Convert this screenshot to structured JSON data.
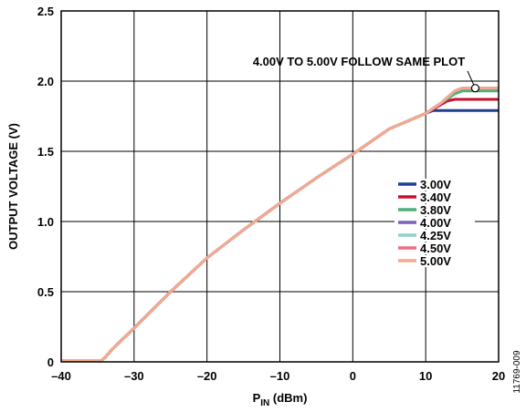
{
  "chart_data": {
    "type": "line",
    "title": "",
    "xlabel": "P",
    "xlabel_sub": "IN",
    "xlabel_unit": " (dBm)",
    "ylabel": "OUTPUT VOLTAGE (V)",
    "xlim": [
      -40,
      20
    ],
    "ylim": [
      0,
      2.5
    ],
    "x_ticks": [
      -40,
      -30,
      -20,
      -10,
      0,
      10,
      20
    ],
    "x_tick_labels": [
      "–40",
      "–30",
      "–20",
      "–10",
      "0",
      "10",
      "20"
    ],
    "y_ticks": [
      0,
      0.5,
      1.0,
      1.5,
      2.0,
      2.5
    ],
    "y_tick_labels": [
      "0",
      "0.5",
      "1.0",
      "1.5",
      "2.0",
      "2.5"
    ],
    "grid": true,
    "legend_position": "right",
    "annotation": "4.00V TO 5.00V FOLLOW SAME PLOT",
    "figure_id": "11769-009",
    "series": [
      {
        "name": "3.00V",
        "color": "#1f3f8f",
        "x": [
          -40,
          -34.5,
          -34,
          -33,
          -30,
          -25,
          -20,
          -15,
          -10,
          -5,
          0,
          5,
          10,
          11,
          12,
          15,
          20
        ],
        "y": [
          0.01,
          0.01,
          0.03,
          0.09,
          0.24,
          0.5,
          0.74,
          0.94,
          1.13,
          1.31,
          1.48,
          1.66,
          1.77,
          1.79,
          1.79,
          1.79,
          1.79
        ]
      },
      {
        "name": "3.40V",
        "color": "#c8102e",
        "x": [
          -40,
          -34.5,
          -34,
          -33,
          -30,
          -25,
          -20,
          -15,
          -10,
          -5,
          0,
          5,
          10,
          12,
          13,
          14,
          20
        ],
        "y": [
          0.01,
          0.01,
          0.03,
          0.09,
          0.24,
          0.5,
          0.74,
          0.94,
          1.13,
          1.31,
          1.48,
          1.66,
          1.77,
          1.83,
          1.86,
          1.87,
          1.87
        ]
      },
      {
        "name": "3.80V",
        "color": "#4caf7d",
        "x": [
          -40,
          -34.5,
          -34,
          -33,
          -30,
          -25,
          -20,
          -15,
          -10,
          -5,
          0,
          5,
          10,
          12,
          14,
          15,
          20
        ],
        "y": [
          0.01,
          0.01,
          0.03,
          0.09,
          0.24,
          0.5,
          0.74,
          0.94,
          1.13,
          1.31,
          1.48,
          1.66,
          1.77,
          1.84,
          1.91,
          1.93,
          1.93
        ]
      },
      {
        "name": "4.00V",
        "color": "#7e62b8",
        "x": [
          -40,
          -34.5,
          -34,
          -33,
          -30,
          -25,
          -20,
          -15,
          -10,
          -5,
          0,
          5,
          10,
          12,
          14,
          15,
          20
        ],
        "y": [
          0.01,
          0.01,
          0.03,
          0.09,
          0.24,
          0.5,
          0.74,
          0.94,
          1.13,
          1.31,
          1.48,
          1.66,
          1.77,
          1.84,
          1.93,
          1.95,
          1.95
        ]
      },
      {
        "name": "4.25V",
        "color": "#8fd3c3",
        "x": [
          -40,
          -34.5,
          -34,
          -33,
          -30,
          -25,
          -20,
          -15,
          -10,
          -5,
          0,
          5,
          10,
          12,
          14,
          15,
          20
        ],
        "y": [
          0.01,
          0.01,
          0.03,
          0.09,
          0.24,
          0.5,
          0.74,
          0.94,
          1.13,
          1.31,
          1.48,
          1.66,
          1.77,
          1.84,
          1.93,
          1.95,
          1.95
        ]
      },
      {
        "name": "4.50V",
        "color": "#ee6e7f",
        "x": [
          -40,
          -34.5,
          -34,
          -33,
          -30,
          -25,
          -20,
          -15,
          -10,
          -5,
          0,
          5,
          10,
          12,
          14,
          15,
          20
        ],
        "y": [
          0.01,
          0.01,
          0.03,
          0.09,
          0.24,
          0.5,
          0.74,
          0.94,
          1.13,
          1.31,
          1.48,
          1.66,
          1.77,
          1.84,
          1.93,
          1.95,
          1.95
        ]
      },
      {
        "name": "5.00V",
        "color": "#f2a98f",
        "x": [
          -40,
          -34.5,
          -34,
          -33,
          -30,
          -25,
          -20,
          -15,
          -10,
          -5,
          0,
          5,
          10,
          12,
          14,
          15,
          20
        ],
        "y": [
          0.01,
          0.01,
          0.03,
          0.09,
          0.24,
          0.5,
          0.74,
          0.94,
          1.13,
          1.31,
          1.48,
          1.66,
          1.77,
          1.84,
          1.93,
          1.95,
          1.95
        ]
      }
    ]
  }
}
